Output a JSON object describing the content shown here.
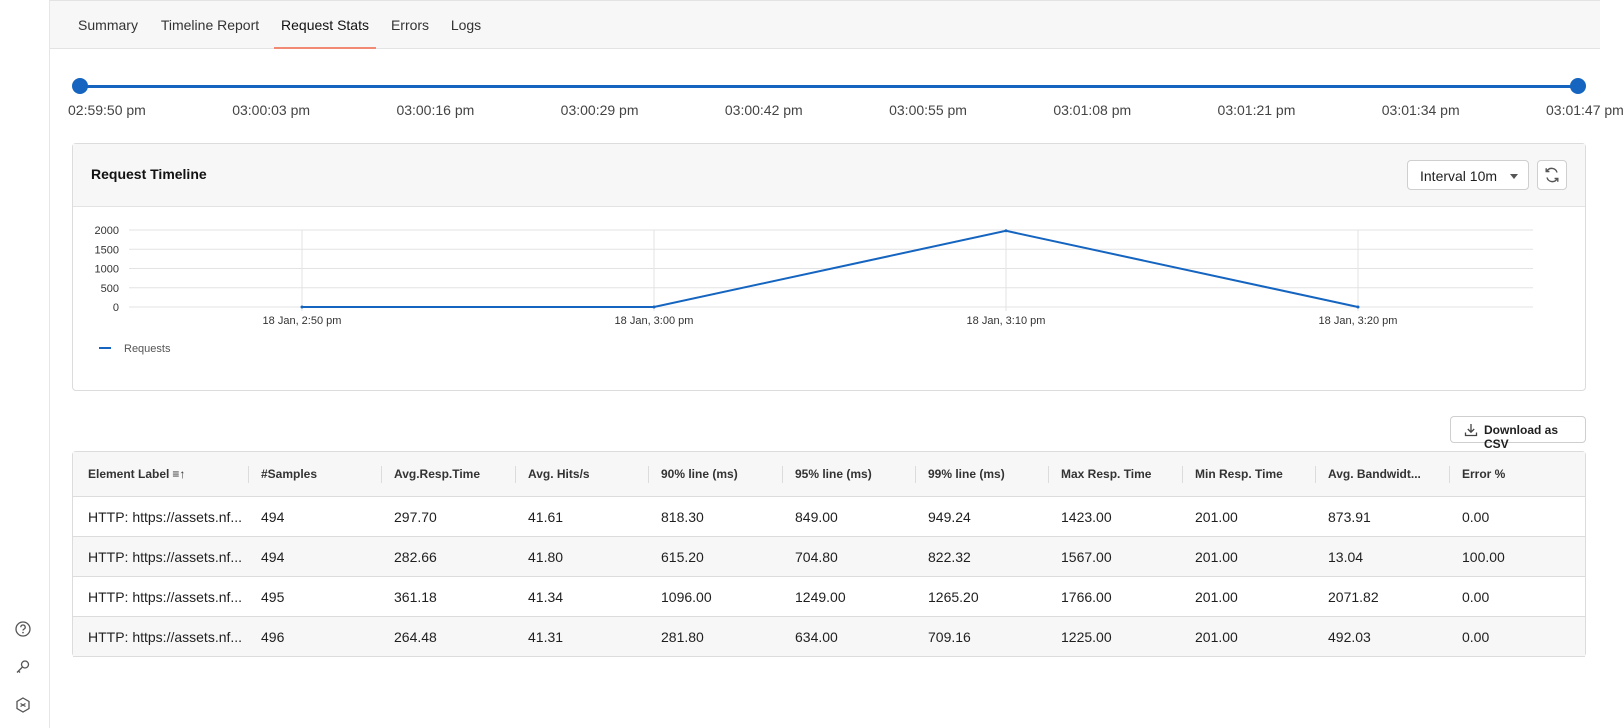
{
  "tabs": [
    {
      "label": "Summary"
    },
    {
      "label": "Timeline Report"
    },
    {
      "label": "Request Stats"
    },
    {
      "label": "Errors"
    },
    {
      "label": "Logs"
    }
  ],
  "active_tab": "Request Stats",
  "time_range": {
    "ticks": [
      "02:59:50 pm",
      "03:00:03 pm",
      "03:00:16 pm",
      "03:00:29 pm",
      "03:00:42 pm",
      "03:00:55 pm",
      "03:01:08 pm",
      "03:01:21 pm",
      "03:01:34 pm",
      "03:01:47 pm"
    ]
  },
  "timeline_card": {
    "title": "Request Timeline",
    "interval_label": "Interval 10m"
  },
  "chart_data": {
    "type": "line",
    "title": "",
    "x": [
      "18 Jan, 2:50 pm",
      "18 Jan, 3:00 pm",
      "18 Jan, 3:10 pm",
      "18 Jan, 3:20 pm"
    ],
    "yticks": [
      0,
      500,
      1000,
      1500,
      2000
    ],
    "ylim": [
      0,
      2000
    ],
    "series": [
      {
        "name": "Requests",
        "values": [
          0,
          0,
          1979,
          0
        ],
        "color": "#1565c0"
      }
    ],
    "legend": "bottom-left",
    "grid": true
  },
  "download_label": "Download as CSV",
  "table": {
    "columns": [
      "Element Label",
      "#Samples",
      "Avg.Resp.Time",
      "Avg. Hits/s",
      "90% line (ms)",
      "95% line (ms)",
      "99% line (ms)",
      "Max Resp. Time",
      "Min Resp. Time",
      "Avg. Bandwidt...",
      "Error %"
    ],
    "sort_indicator": "≡↑",
    "rows": [
      [
        "HTTP: https://assets.nf...",
        "494",
        "297.70",
        "41.61",
        "818.30",
        "849.00",
        "949.24",
        "1423.00",
        "201.00",
        "873.91",
        "0.00"
      ],
      [
        "HTTP: https://assets.nf...",
        "494",
        "282.66",
        "41.80",
        "615.20",
        "704.80",
        "822.32",
        "1567.00",
        "201.00",
        "13.04",
        "100.00"
      ],
      [
        "HTTP: https://assets.nf...",
        "495",
        "361.18",
        "41.34",
        "1096.00",
        "1249.00",
        "1265.20",
        "1766.00",
        "201.00",
        "2071.82",
        "0.00"
      ],
      [
        "HTTP: https://assets.nf...",
        "496",
        "264.48",
        "41.31",
        "281.80",
        "634.00",
        "709.16",
        "1225.00",
        "201.00",
        "492.03",
        "0.00"
      ]
    ]
  },
  "rail_icons": [
    "help-icon",
    "key-icon",
    "integration-icon"
  ]
}
